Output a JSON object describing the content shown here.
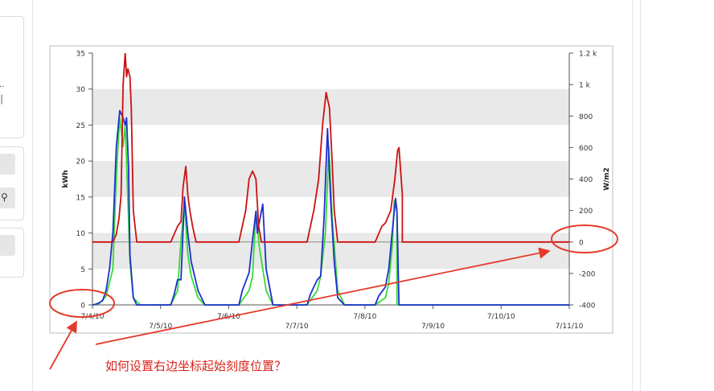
{
  "question_text": "如何设置右边坐标起始刻度位置？",
  "colors": {
    "red_series": "#cc1111",
    "blue_series": "#1f2fcf",
    "green_series": "#33dd33",
    "annotation": "#e53a2a",
    "band": "#e9e9e9"
  },
  "chart_data": {
    "type": "line",
    "xlabel": "",
    "ylabel": "kWh",
    "y2label": "W/m2",
    "ylim": [
      0,
      35
    ],
    "y2lim": [
      -400,
      1200
    ],
    "xlim": [
      "7/4/10",
      "7/11/10"
    ],
    "y_ticks": [
      "0",
      "5",
      "10",
      "15",
      "20",
      "25",
      "30",
      "35"
    ],
    "y2_ticks": [
      "-400",
      "-200",
      "0",
      "200",
      "400",
      "600",
      "800",
      "1 k",
      "1.2 k"
    ],
    "x_ticks": [
      "7/4/10",
      "7/5/10",
      "7/6/10",
      "7/7/10",
      "7/8/10",
      "7/9/10",
      "7/10/10",
      "7/11/10"
    ],
    "grid": "horizontal bands",
    "series": [
      {
        "axis": "right",
        "x": [
          0,
          0.15,
          0.3,
          0.35,
          0.39,
          0.42,
          0.45,
          0.48,
          0.5,
          0.52,
          0.55,
          0.57,
          0.6,
          0.65,
          0.75,
          1.15,
          1.25,
          1.3,
          1.33,
          1.37,
          1.4,
          1.43,
          1.47,
          1.52,
          1.58,
          1.7,
          2.15,
          2.25,
          2.3,
          2.35,
          2.4,
          2.44,
          2.48,
          2.52,
          2.55,
          2.6,
          2.7,
          3.15,
          3.25,
          3.32,
          3.38,
          3.43,
          3.48,
          3.52,
          3.55,
          3.6,
          3.7,
          3.8,
          4.15,
          4.25,
          4.3,
          4.38,
          4.44,
          4.48,
          4.5,
          4.55,
          4.55,
          7.0
        ],
        "y": [
          0,
          0,
          0,
          50,
          150,
          300,
          1000,
          1200,
          1050,
          1100,
          1050,
          850,
          200,
          0,
          0,
          0,
          100,
          130,
          350,
          480,
          300,
          200,
          100,
          0,
          0,
          0,
          0,
          200,
          400,
          450,
          400,
          100,
          0,
          0,
          0,
          0,
          0,
          0,
          200,
          400,
          750,
          950,
          850,
          500,
          200,
          0,
          0,
          0,
          0,
          100,
          120,
          200,
          400,
          580,
          600,
          300,
          0,
          0
        ]
      },
      {
        "axis": "left",
        "x": [
          0,
          0.05,
          0.1,
          0.15,
          0.2,
          0.25,
          0.3,
          0.35,
          0.4,
          0.45,
          0.48,
          0.5,
          0.53,
          0.55,
          0.6,
          0.65,
          0.75,
          1.15,
          1.2,
          1.25,
          1.3,
          1.35,
          1.4,
          1.45,
          1.55,
          1.65,
          1.75,
          2.15,
          2.2,
          2.3,
          2.35,
          2.4,
          2.42,
          2.5,
          2.55,
          2.65,
          2.7,
          3.15,
          3.2,
          3.3,
          3.35,
          3.4,
          3.45,
          3.5,
          3.55,
          3.6,
          3.7,
          4.15,
          4.2,
          4.3,
          4.35,
          4.4,
          4.45,
          4.47,
          4.5,
          4.5,
          7.0
        ],
        "y": [
          0,
          0.1,
          0.3,
          0.6,
          2,
          5,
          10,
          22,
          27,
          26,
          25,
          26,
          19,
          7,
          1,
          0,
          0,
          0,
          1.5,
          3.5,
          3.5,
          15,
          10,
          6,
          2,
          0,
          0,
          0,
          2,
          4.5,
          9,
          13,
          10,
          14,
          5,
          0,
          0,
          0,
          1.5,
          3.5,
          4,
          12,
          24.5,
          14,
          6,
          1,
          0,
          0,
          1.2,
          2.5,
          5,
          10,
          14.8,
          13,
          0,
          0,
          0
        ]
      },
      {
        "axis": "left",
        "x": [
          0,
          0.1,
          0.2,
          0.3,
          0.35,
          0.4,
          0.45,
          0.48,
          0.5,
          0.55,
          0.6,
          0.7,
          1.15,
          1.25,
          1.3,
          1.35,
          1.4,
          1.45,
          1.55,
          1.65,
          2.15,
          2.3,
          2.35,
          2.4,
          2.45,
          2.55,
          2.65,
          3.15,
          3.3,
          3.35,
          3.42,
          3.47,
          3.52,
          3.6,
          3.7,
          4.15,
          4.3,
          4.35,
          4.4,
          4.43,
          4.47,
          4.47,
          7.0
        ],
        "y": [
          0,
          0.2,
          1.2,
          5,
          18,
          26,
          22,
          25,
          20,
          6,
          1,
          0,
          0,
          2,
          9,
          14,
          7,
          4,
          1,
          0,
          0,
          2,
          4,
          13,
          8,
          2,
          0,
          0,
          2,
          4,
          10,
          22,
          12,
          2,
          0,
          0,
          1,
          3,
          8,
          14.5,
          13,
          0,
          0
        ]
      }
    ]
  }
}
